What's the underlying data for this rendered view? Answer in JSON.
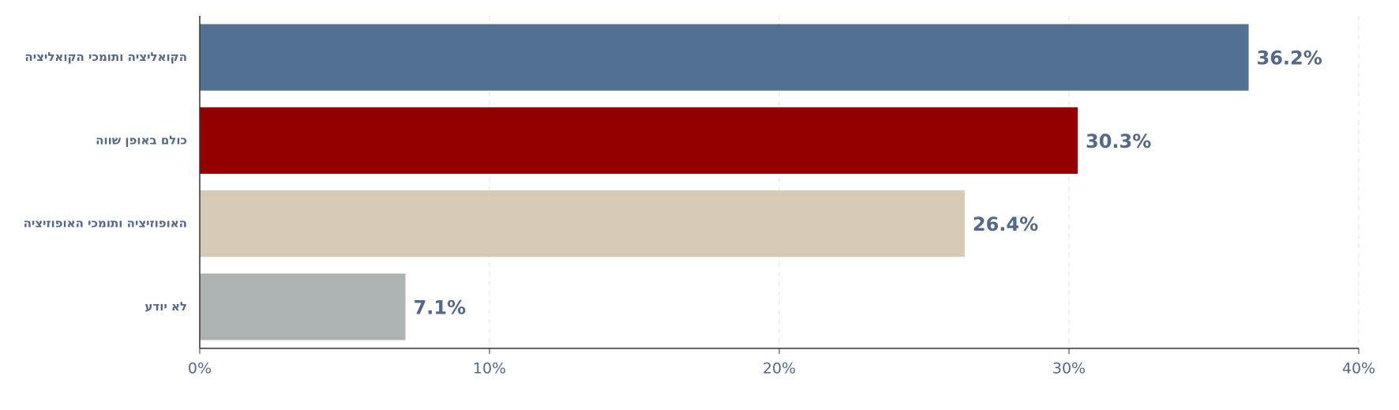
{
  "chart_data": {
    "type": "bar",
    "orientation": "horizontal",
    "categories": [
      "הקואליציה ותומכי הקואליציה",
      "כולם באופן שווה",
      "האופוזיציה ותומכי האופוזיציה",
      "לא יודע"
    ],
    "values": [
      36.2,
      30.3,
      26.4,
      7.1
    ],
    "value_labels": [
      "36.2%",
      "30.3%",
      "26.4%",
      "7.1%"
    ],
    "colors": [
      "#527193",
      "#940000",
      "#d6cab5",
      "#adb3b3"
    ],
    "xlim": [
      0,
      40
    ],
    "xticks": [
      {
        "value": 0,
        "label": "0%"
      },
      {
        "value": 10,
        "label": "10%"
      },
      {
        "value": 20,
        "label": "20%"
      },
      {
        "value": 30,
        "label": "30%"
      },
      {
        "value": 40,
        "label": "40%"
      }
    ],
    "grid": true
  }
}
